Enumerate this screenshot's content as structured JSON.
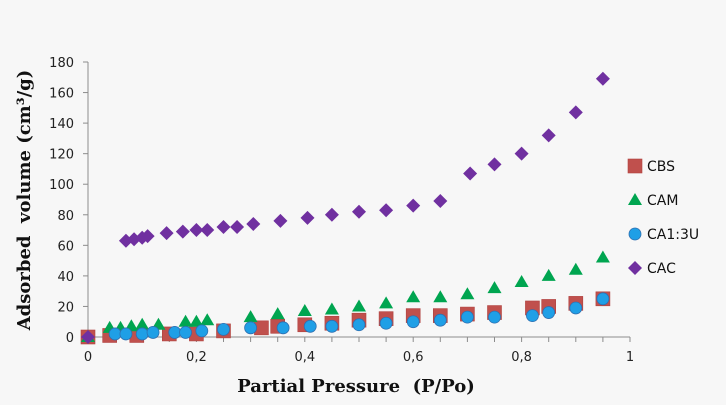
{
  "chart_data": {
    "type": "scatter",
    "title": "",
    "xlabel": "Partial Pressure  (P/Po)",
    "ylabel": "Adsorbed  volume (cm³/g)",
    "xlim": [
      0,
      1
    ],
    "ylim": [
      0,
      180
    ],
    "x_ticks": [
      0,
      0.2,
      0.4,
      0.6,
      0.8,
      1
    ],
    "x_tick_labels": [
      "0",
      "0,2",
      "0,4",
      "0,6",
      "0,8",
      "1"
    ],
    "x_minor_step": 0.05,
    "y_ticks": [
      0,
      20,
      40,
      60,
      80,
      100,
      120,
      140,
      160,
      180
    ],
    "y_tick_labels": [
      "0",
      "20",
      "40",
      "60",
      "80",
      "100",
      "120",
      "140",
      "160",
      "180"
    ],
    "grid": false,
    "legend_position": "right",
    "series": [
      {
        "name": "CBS",
        "marker": "square",
        "color": "#c0504d",
        "x": [
          0,
          0.04,
          0.09,
          0.15,
          0.2,
          0.25,
          0.32,
          0.35,
          0.4,
          0.45,
          0.5,
          0.55,
          0.6,
          0.65,
          0.7,
          0.75,
          0.82,
          0.85,
          0.9,
          0.95
        ],
        "y": [
          0,
          1,
          1,
          2,
          2,
          4,
          6,
          7,
          8,
          9,
          11,
          12,
          14,
          14,
          15,
          16,
          19,
          20,
          22,
          25
        ]
      },
      {
        "name": "CAM",
        "marker": "triangle",
        "color": "#00a550",
        "x": [
          0,
          0.04,
          0.06,
          0.08,
          0.1,
          0.13,
          0.18,
          0.2,
          0.22,
          0.3,
          0.35,
          0.4,
          0.45,
          0.5,
          0.55,
          0.6,
          0.65,
          0.7,
          0.75,
          0.8,
          0.85,
          0.9,
          0.95
        ],
        "y": [
          0,
          6,
          6,
          7,
          8,
          8,
          10,
          10,
          11,
          13,
          15,
          17,
          18,
          20,
          22,
          26,
          26,
          28,
          32,
          36,
          40,
          44,
          52
        ]
      },
      {
        "name": "CA1:3U",
        "marker": "circle",
        "color": "#1f9fe6",
        "x": [
          0.05,
          0.07,
          0.1,
          0.12,
          0.16,
          0.18,
          0.21,
          0.25,
          0.3,
          0.36,
          0.41,
          0.45,
          0.5,
          0.55,
          0.6,
          0.65,
          0.7,
          0.75,
          0.82,
          0.85,
          0.9,
          0.95
        ],
        "y": [
          2,
          2,
          2,
          3,
          3,
          3,
          4,
          5,
          6,
          6,
          7,
          7,
          8,
          9,
          10,
          11,
          13,
          13,
          14,
          16,
          19,
          25
        ]
      },
      {
        "name": "CAC",
        "marker": "diamond",
        "color": "#7030a0",
        "x": [
          0,
          0.07,
          0.085,
          0.1,
          0.11,
          0.145,
          0.175,
          0.2,
          0.22,
          0.25,
          0.275,
          0.305,
          0.355,
          0.405,
          0.45,
          0.5,
          0.55,
          0.6,
          0.65,
          0.705,
          0.75,
          0.8,
          0.85,
          0.9,
          0.95
        ],
        "y": [
          0,
          63,
          64,
          65,
          66,
          68,
          69,
          70,
          70,
          72,
          72,
          74,
          76,
          78,
          80,
          82,
          83,
          86,
          89,
          107,
          113,
          120,
          132,
          147,
          169
        ]
      }
    ]
  }
}
